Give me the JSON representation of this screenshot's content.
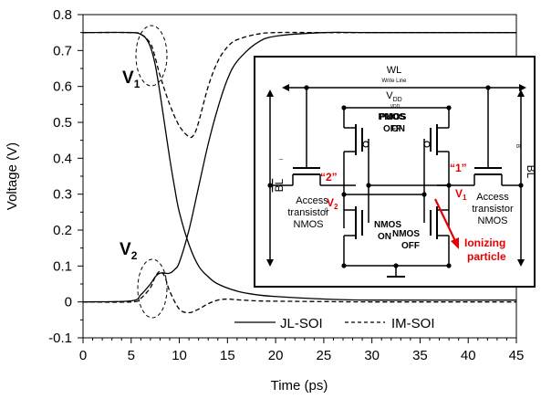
{
  "chart_data": {
    "type": "line",
    "xlabel": "Time (ps)",
    "ylabel": "Voltage (V)",
    "xlim": [
      0,
      45
    ],
    "ylim": [
      -0.1,
      0.8
    ],
    "xticks": [
      "0",
      "5",
      "10",
      "15",
      "20",
      "25",
      "30",
      "35",
      "40",
      "45"
    ],
    "yticks": [
      "-0.1",
      "0",
      "0.1",
      "0.2",
      "0.3",
      "0.4",
      "0.5",
      "0.6",
      "0.7",
      "0.8"
    ],
    "grid": false,
    "legend_position": "bottom-right",
    "series": [
      {
        "name": "JL-SOI",
        "style": "solid",
        "node": "V1",
        "x": [
          0,
          5,
          6,
          6.5,
          7,
          7.5,
          8,
          8.5,
          9,
          9.5,
          10,
          11,
          12,
          13,
          14,
          16,
          18,
          20,
          25,
          30,
          45
        ],
        "y": [
          0.75,
          0.75,
          0.745,
          0.735,
          0.71,
          0.66,
          0.58,
          0.49,
          0.4,
          0.32,
          0.25,
          0.16,
          0.1,
          0.07,
          0.05,
          0.03,
          0.02,
          0.015,
          0.008,
          0.005,
          0.005
        ]
      },
      {
        "name": "JL-SOI",
        "style": "solid",
        "node": "V2",
        "x": [
          0,
          5,
          6,
          7,
          7.5,
          8,
          8.5,
          9,
          9.5,
          10,
          11,
          12,
          13,
          14,
          15,
          16,
          18,
          20,
          25,
          30,
          45
        ],
        "y": [
          0,
          0.003,
          0.02,
          0.05,
          0.07,
          0.08,
          0.08,
          0.08,
          0.09,
          0.11,
          0.2,
          0.32,
          0.44,
          0.54,
          0.62,
          0.67,
          0.72,
          0.74,
          0.75,
          0.75,
          0.75
        ]
      },
      {
        "name": "IM-SOI",
        "style": "dashed",
        "node": "V1",
        "x": [
          0,
          5,
          6,
          7,
          7.5,
          8,
          9,
          10,
          11,
          11.5,
          12,
          13,
          14,
          15,
          16,
          18,
          20,
          25,
          30,
          45
        ],
        "y": [
          0.75,
          0.75,
          0.745,
          0.72,
          0.68,
          0.63,
          0.55,
          0.49,
          0.46,
          0.465,
          0.5,
          0.6,
          0.67,
          0.71,
          0.73,
          0.745,
          0.75,
          0.75,
          0.75,
          0.75
        ]
      },
      {
        "name": "IM-SOI",
        "style": "dashed",
        "node": "V2",
        "x": [
          0,
          5,
          6,
          7,
          7.5,
          8,
          8.5,
          9,
          10,
          11,
          12,
          13,
          14,
          15,
          16,
          18,
          20,
          25,
          30,
          45
        ],
        "y": [
          0,
          0,
          0.01,
          0.04,
          0.07,
          0.085,
          0.07,
          0.03,
          -0.02,
          -0.03,
          -0.02,
          -0.005,
          0.005,
          0.008,
          0.006,
          0.003,
          0.002,
          0.001,
          0.0,
          0.0
        ]
      }
    ],
    "legend": [
      {
        "label": "JL-SOI",
        "style": "solid"
      },
      {
        "label": "IM-SOI",
        "style": "dashed"
      }
    ],
    "annotations": {
      "v1_main": "V",
      "v1_sub": "1",
      "v2_main": "V",
      "v2_sub": "2"
    },
    "inset": {
      "wl": "WL",
      "wl_sub": "Write Line",
      "vdd_main": "V",
      "vdd_sub": "DD",
      "vdd_sub2": "VDD",
      "bl_left": "BL",
      "bl_right": "BL",
      "bl_tiny_left": "i",
      "bl_tiny_right": "B",
      "pmos_left_1": "PMOS",
      "pmos_left_2": "OFF",
      "pmos_right_1": "PMOS",
      "pmos_right_2": "ON",
      "nmos_left_1": "NMOS",
      "nmos_left_2": "ON",
      "nmos_right_1": "NMOS",
      "nmos_right_2": "OFF",
      "access_left_1": "Access",
      "access_left_2": "transistor",
      "access_left_3": "NMOS",
      "access_right_1": "Access",
      "access_right_2": "transistor",
      "access_right_3": "NMOS",
      "node2_label": "“2”",
      "node1_label": "“1”",
      "v2_main": "V",
      "v2_sub": "2",
      "v2_pre": "0",
      "v1_main": "V",
      "v1_sub": "1",
      "ionizing_1": "Ionizing",
      "ionizing_2": "particle",
      "accent_color": "#e60000"
    }
  }
}
